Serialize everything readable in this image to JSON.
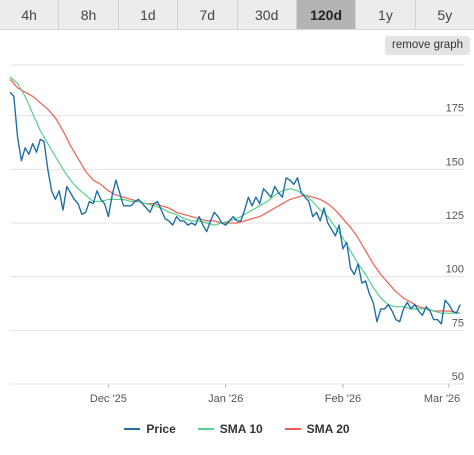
{
  "tabs": [
    {
      "label": "4h",
      "active": false
    },
    {
      "label": "8h",
      "active": false
    },
    {
      "label": "1d",
      "active": false
    },
    {
      "label": "7d",
      "active": false
    },
    {
      "label": "30d",
      "active": false
    },
    {
      "label": "120d",
      "active": true
    },
    {
      "label": "1y",
      "active": false
    },
    {
      "label": "5y",
      "active": false
    }
  ],
  "remove_graph_label": "remove graph",
  "colors": {
    "price": "#1f6fa8",
    "sma10": "#55d08a",
    "sma20": "#ef5d4f",
    "active_tab": "#b4b4b4",
    "grid": "#e3e3e3"
  },
  "chart_data": {
    "type": "line",
    "x_ticks": [
      "Dec '25",
      "Jan '26",
      "Feb '26",
      "Mar '26"
    ],
    "y_ticks": [
      50,
      75,
      100,
      125,
      150,
      175
    ],
    "ylim": [
      50,
      200
    ],
    "xlim": [
      "2025-11-05",
      "2026-03-05"
    ],
    "grid": true,
    "legend_position": "bottom",
    "series": [
      {
        "name": "Price",
        "color": "#1f6fa8",
        "points": [
          [
            "2025-11-05",
            186
          ],
          [
            "2025-11-06",
            184
          ],
          [
            "2025-11-07",
            165
          ],
          [
            "2025-11-08",
            154
          ],
          [
            "2025-11-09",
            160
          ],
          [
            "2025-11-10",
            157
          ],
          [
            "2025-11-11",
            162
          ],
          [
            "2025-11-12",
            158
          ],
          [
            "2025-11-13",
            164
          ],
          [
            "2025-11-14",
            163
          ],
          [
            "2025-11-15",
            150
          ],
          [
            "2025-11-16",
            140
          ],
          [
            "2025-11-17",
            136
          ],
          [
            "2025-11-18",
            140
          ],
          [
            "2025-11-19",
            131
          ],
          [
            "2025-11-20",
            142
          ],
          [
            "2025-11-21",
            139
          ],
          [
            "2025-11-22",
            136
          ],
          [
            "2025-11-23",
            134
          ],
          [
            "2025-11-24",
            129
          ],
          [
            "2025-11-25",
            130
          ],
          [
            "2025-11-26",
            135
          ],
          [
            "2025-11-27",
            134
          ],
          [
            "2025-11-28",
            140
          ],
          [
            "2025-11-29",
            136
          ],
          [
            "2025-11-30",
            134
          ],
          [
            "2025-12-01",
            128
          ],
          [
            "2025-12-02",
            138
          ],
          [
            "2025-12-03",
            145
          ],
          [
            "2025-12-04",
            139
          ],
          [
            "2025-12-05",
            133
          ],
          [
            "2025-12-06",
            133
          ],
          [
            "2025-12-07",
            133
          ],
          [
            "2025-12-08",
            135
          ],
          [
            "2025-12-09",
            136
          ],
          [
            "2025-12-10",
            134
          ],
          [
            "2025-12-11",
            132
          ],
          [
            "2025-12-12",
            130
          ],
          [
            "2025-12-13",
            134
          ],
          [
            "2025-12-14",
            135
          ],
          [
            "2025-12-15",
            131
          ],
          [
            "2025-12-16",
            127
          ],
          [
            "2025-12-17",
            126
          ],
          [
            "2025-12-18",
            124
          ],
          [
            "2025-12-19",
            128
          ],
          [
            "2025-12-20",
            126
          ],
          [
            "2025-12-21",
            126
          ],
          [
            "2025-12-22",
            124
          ],
          [
            "2025-12-23",
            125
          ],
          [
            "2025-12-24",
            124
          ],
          [
            "2025-12-25",
            128
          ],
          [
            "2025-12-26",
            124
          ],
          [
            "2025-12-27",
            121
          ],
          [
            "2025-12-28",
            126
          ],
          [
            "2025-12-29",
            130
          ],
          [
            "2025-12-30",
            128
          ],
          [
            "2025-12-31",
            125
          ],
          [
            "2026-01-01",
            124
          ],
          [
            "2026-01-02",
            126
          ],
          [
            "2026-01-03",
            128
          ],
          [
            "2026-01-04",
            126
          ],
          [
            "2026-01-05",
            126
          ],
          [
            "2026-01-06",
            131
          ],
          [
            "2026-01-07",
            137
          ],
          [
            "2026-01-08",
            133
          ],
          [
            "2026-01-09",
            137
          ],
          [
            "2026-01-10",
            134
          ],
          [
            "2026-01-11",
            141
          ],
          [
            "2026-01-12",
            139
          ],
          [
            "2026-01-13",
            137
          ],
          [
            "2026-01-14",
            142
          ],
          [
            "2026-01-15",
            139
          ],
          [
            "2026-01-16",
            137
          ],
          [
            "2026-01-17",
            146
          ],
          [
            "2026-01-18",
            145
          ],
          [
            "2026-01-19",
            143
          ],
          [
            "2026-01-20",
            146
          ],
          [
            "2026-01-21",
            139
          ],
          [
            "2026-01-22",
            137
          ],
          [
            "2026-01-23",
            135
          ],
          [
            "2026-01-24",
            128
          ],
          [
            "2026-01-25",
            130
          ],
          [
            "2026-01-26",
            126
          ],
          [
            "2026-01-27",
            132
          ],
          [
            "2026-01-28",
            125
          ],
          [
            "2026-01-29",
            122
          ],
          [
            "2026-01-30",
            119
          ],
          [
            "2026-01-31",
            124
          ],
          [
            "2026-02-01",
            113
          ],
          [
            "2026-02-02",
            116
          ],
          [
            "2026-02-03",
            104
          ],
          [
            "2026-02-04",
            101
          ],
          [
            "2026-02-05",
            106
          ],
          [
            "2026-02-06",
            97
          ],
          [
            "2026-02-07",
            98
          ],
          [
            "2026-02-08",
            92
          ],
          [
            "2026-02-09",
            88
          ],
          [
            "2026-02-10",
            79
          ],
          [
            "2026-02-11",
            85
          ],
          [
            "2026-02-12",
            85
          ],
          [
            "2026-02-13",
            87
          ],
          [
            "2026-02-14",
            84
          ],
          [
            "2026-02-15",
            80
          ],
          [
            "2026-02-16",
            79
          ],
          [
            "2026-02-17",
            85
          ],
          [
            "2026-02-18",
            88
          ],
          [
            "2026-02-19",
            85
          ],
          [
            "2026-02-20",
            87
          ],
          [
            "2026-02-21",
            84
          ],
          [
            "2026-02-22",
            82
          ],
          [
            "2026-02-23",
            86
          ],
          [
            "2026-02-24",
            84
          ],
          [
            "2026-02-25",
            80
          ],
          [
            "2026-02-26",
            80
          ],
          [
            "2026-02-27",
            78
          ],
          [
            "2026-02-28",
            89
          ],
          [
            "2026-03-01",
            87
          ],
          [
            "2026-03-02",
            84
          ],
          [
            "2026-03-03",
            83
          ],
          [
            "2026-03-04",
            87
          ]
        ]
      },
      {
        "name": "SMA 10",
        "color": "#55d08a",
        "points": [
          [
            "2025-11-05",
            193
          ],
          [
            "2025-11-07",
            190
          ],
          [
            "2025-11-09",
            184
          ],
          [
            "2025-11-11",
            176
          ],
          [
            "2025-11-13",
            168
          ],
          [
            "2025-11-15",
            162
          ],
          [
            "2025-11-17",
            156
          ],
          [
            "2025-11-19",
            150
          ],
          [
            "2025-11-21",
            145
          ],
          [
            "2025-11-23",
            141
          ],
          [
            "2025-11-25",
            138
          ],
          [
            "2025-11-27",
            135
          ],
          [
            "2025-11-29",
            135
          ],
          [
            "2025-12-01",
            136
          ],
          [
            "2025-12-03",
            136
          ],
          [
            "2025-12-05",
            136
          ],
          [
            "2025-12-07",
            135
          ],
          [
            "2025-12-09",
            135
          ],
          [
            "2025-12-11",
            134
          ],
          [
            "2025-12-13",
            133
          ],
          [
            "2025-12-15",
            132
          ],
          [
            "2025-12-17",
            130
          ],
          [
            "2025-12-19",
            129
          ],
          [
            "2025-12-21",
            127
          ],
          [
            "2025-12-23",
            126
          ],
          [
            "2025-12-25",
            126
          ],
          [
            "2025-12-27",
            125
          ],
          [
            "2025-12-29",
            124
          ],
          [
            "2025-12-31",
            125
          ],
          [
            "2026-01-02",
            126
          ],
          [
            "2026-01-04",
            127
          ],
          [
            "2026-01-06",
            129
          ],
          [
            "2026-01-08",
            131
          ],
          [
            "2026-01-10",
            133
          ],
          [
            "2026-01-12",
            135
          ],
          [
            "2026-01-14",
            138
          ],
          [
            "2026-01-16",
            140
          ],
          [
            "2026-01-18",
            141
          ],
          [
            "2026-01-20",
            140
          ],
          [
            "2026-01-22",
            138
          ],
          [
            "2026-01-24",
            135
          ],
          [
            "2026-01-26",
            131
          ],
          [
            "2026-01-28",
            128
          ],
          [
            "2026-01-30",
            123
          ],
          [
            "2026-02-01",
            118
          ],
          [
            "2026-02-03",
            112
          ],
          [
            "2026-02-05",
            106
          ],
          [
            "2026-02-07",
            101
          ],
          [
            "2026-02-09",
            95
          ],
          [
            "2026-02-11",
            90
          ],
          [
            "2026-02-13",
            87
          ],
          [
            "2026-02-15",
            86
          ],
          [
            "2026-02-17",
            86
          ],
          [
            "2026-02-19",
            85
          ],
          [
            "2026-02-21",
            85
          ],
          [
            "2026-02-23",
            85
          ],
          [
            "2026-02-25",
            84
          ],
          [
            "2026-02-27",
            83
          ],
          [
            "2026-03-01",
            83
          ],
          [
            "2026-03-04",
            83
          ]
        ]
      },
      {
        "name": "SMA 20",
        "color": "#ef5d4f",
        "points": [
          [
            "2025-11-05",
            192
          ],
          [
            "2025-11-07",
            188
          ],
          [
            "2025-11-09",
            186
          ],
          [
            "2025-11-11",
            184
          ],
          [
            "2025-11-13",
            181
          ],
          [
            "2025-11-15",
            178
          ],
          [
            "2025-11-17",
            174
          ],
          [
            "2025-11-19",
            168
          ],
          [
            "2025-11-21",
            161
          ],
          [
            "2025-11-23",
            155
          ],
          [
            "2025-11-25",
            149
          ],
          [
            "2025-11-27",
            145
          ],
          [
            "2025-11-29",
            143
          ],
          [
            "2025-12-01",
            140
          ],
          [
            "2025-12-03",
            138
          ],
          [
            "2025-12-05",
            137
          ],
          [
            "2025-12-07",
            136
          ],
          [
            "2025-12-09",
            135
          ],
          [
            "2025-12-11",
            134
          ],
          [
            "2025-12-13",
            134
          ],
          [
            "2025-12-15",
            133
          ],
          [
            "2025-12-17",
            132
          ],
          [
            "2025-12-19",
            130
          ],
          [
            "2025-12-21",
            129
          ],
          [
            "2025-12-23",
            128
          ],
          [
            "2025-12-25",
            127
          ],
          [
            "2025-12-27",
            126
          ],
          [
            "2025-12-29",
            126
          ],
          [
            "2025-12-31",
            125
          ],
          [
            "2026-01-02",
            125
          ],
          [
            "2026-01-04",
            125
          ],
          [
            "2026-01-06",
            126
          ],
          [
            "2026-01-08",
            127
          ],
          [
            "2026-01-10",
            128
          ],
          [
            "2026-01-12",
            130
          ],
          [
            "2026-01-14",
            132
          ],
          [
            "2026-01-16",
            134
          ],
          [
            "2026-01-18",
            136
          ],
          [
            "2026-01-20",
            137
          ],
          [
            "2026-01-22",
            138
          ],
          [
            "2026-01-24",
            137
          ],
          [
            "2026-01-26",
            136
          ],
          [
            "2026-01-28",
            134
          ],
          [
            "2026-01-30",
            131
          ],
          [
            "2026-02-01",
            127
          ],
          [
            "2026-02-03",
            123
          ],
          [
            "2026-02-05",
            118
          ],
          [
            "2026-02-07",
            112
          ],
          [
            "2026-02-09",
            106
          ],
          [
            "2026-02-11",
            101
          ],
          [
            "2026-02-13",
            97
          ],
          [
            "2026-02-15",
            93
          ],
          [
            "2026-02-17",
            90
          ],
          [
            "2026-02-19",
            88
          ],
          [
            "2026-02-21",
            86
          ],
          [
            "2026-02-23",
            85
          ],
          [
            "2026-02-25",
            84
          ],
          [
            "2026-02-27",
            84
          ],
          [
            "2026-03-01",
            84
          ],
          [
            "2026-03-04",
            83
          ]
        ]
      }
    ]
  }
}
